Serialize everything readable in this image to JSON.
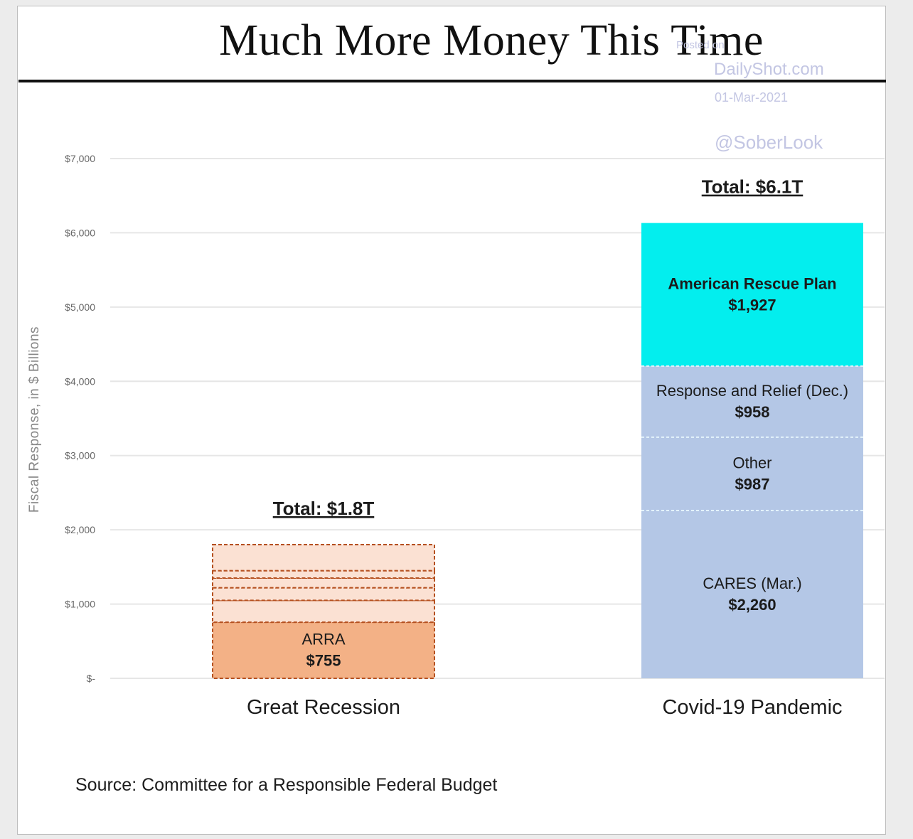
{
  "chart_data": {
    "type": "bar",
    "stacked": true,
    "title": "Much More Money This Time",
    "ylabel": "Fiscal Response, in $ Billions",
    "ylim": [
      0,
      7000
    ],
    "yticks": [
      0,
      1000,
      2000,
      3000,
      4000,
      5000,
      6000,
      7000
    ],
    "ytick_labels": [
      "$-",
      "$1,000",
      "$2,000",
      "$3,000",
      "$4,000",
      "$5,000",
      "$6,000",
      "$7,000"
    ],
    "grid": true,
    "categories": [
      "Great Recession",
      "Covid-19 Pandemic"
    ],
    "totals": [
      "Total: $1.8T",
      "Total: $6.1T"
    ],
    "bars": [
      {
        "category": "Great Recession",
        "segments": [
          {
            "label": "ARRA",
            "value_label": "$755",
            "value": 755,
            "color": "#f3b186",
            "dashed": true
          },
          {
            "label": "",
            "value_label": "",
            "value": 295,
            "color": "#fbe1d3",
            "dashed": true
          },
          {
            "label": "",
            "value_label": "",
            "value": 170,
            "color": "#fbe1d3",
            "dashed": true
          },
          {
            "label": "",
            "value_label": "",
            "value": 130,
            "color": "#fbe1d3",
            "dashed": true
          },
          {
            "label": "",
            "value_label": "",
            "value": 100,
            "color": "#fbe1d3",
            "dashed": true
          },
          {
            "label": "",
            "value_label": "",
            "value": 350,
            "color": "#fbe1d3",
            "dashed": true
          }
        ]
      },
      {
        "category": "Covid-19 Pandemic",
        "segments": [
          {
            "label": "CARES (Mar.)",
            "value_label": "$2,260",
            "value": 2260,
            "color": "#b4c7e6",
            "dashed": false
          },
          {
            "label": "Other",
            "value_label": "$987",
            "value": 987,
            "color": "#b4c7e6",
            "dashed": false
          },
          {
            "label": "Response and Relief (Dec.)",
            "value_label": "$958",
            "value": 958,
            "color": "#b4c7e6",
            "dashed": false
          },
          {
            "label": "American Rescue Plan",
            "value_label": "$1,927",
            "value": 1927,
            "color": "#03eeee",
            "dashed": false
          }
        ]
      }
    ]
  },
  "source": "Source: Committee for a Responsible Federal Budget",
  "watermark": {
    "posted": "Posted on",
    "site": "DailyShot.com",
    "date": "01-Mar-2021",
    "handle": "@SoberLook"
  }
}
